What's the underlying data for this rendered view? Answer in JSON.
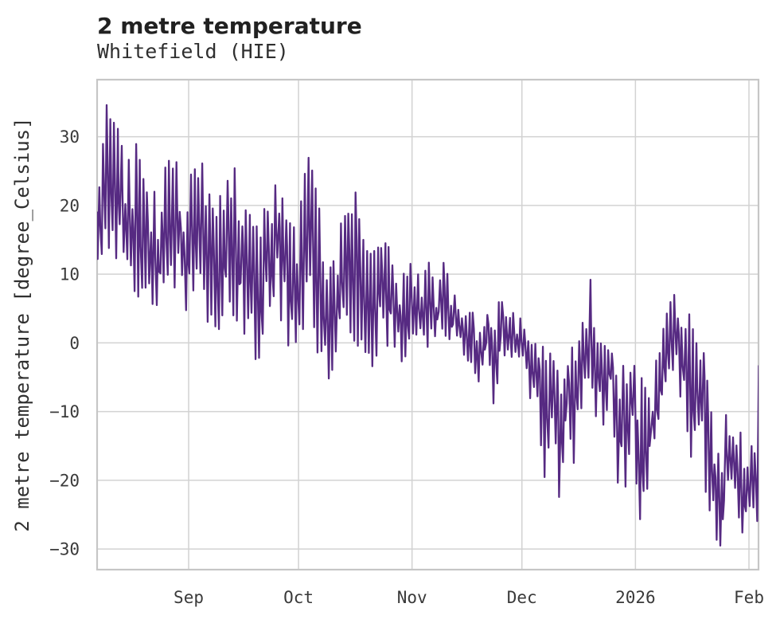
{
  "chart_data": {
    "type": "line",
    "title": "2 metre temperature",
    "subtitle": "Whitefield (HIE)",
    "ylabel": "2 metre temperature [degree_Celsius]",
    "xlabel": "",
    "legend": "none",
    "grid": true,
    "line_color": "#562a82",
    "background_color": "#ffffff",
    "grid_color": "#d2d2d2",
    "axis_border_color": "#c6c6c6",
    "tick_text_color": "#3a3a3a",
    "ylim": [
      -33,
      38.3
    ],
    "yticks": [
      30,
      20,
      10,
      0,
      -10,
      -20,
      -30
    ],
    "xticks": [
      {
        "label": "Sep",
        "day": 25
      },
      {
        "label": "Oct",
        "day": 55
      },
      {
        "label": "Nov",
        "day": 86
      },
      {
        "label": "Dec",
        "day": 116
      },
      {
        "label": "2026",
        "day": 147
      },
      {
        "label": "Feb",
        "day": 178
      }
    ],
    "x_unit": "days (day 0 = left edge of plot, month ticks at positions above)",
    "x_range": [
      0,
      180.6
    ],
    "series": {
      "name": "2 metre temperature",
      "unit": "degree_Celsius",
      "sampling": "daily min/max envelope sampled every 2 days, read from plot",
      "step_days": 2,
      "daily_min": [
        12,
        13,
        12,
        9,
        6.5,
        7,
        5,
        7,
        4,
        8,
        10,
        6,
        2,
        5,
        8,
        2,
        0,
        4,
        6,
        2,
        0,
        -2,
        -3.5,
        2,
        5,
        3,
        -1,
        -2.5,
        2,
        5,
        -2,
        -6.5,
        -4,
        1,
        3,
        0,
        -3,
        -5.5,
        -2,
        0,
        -1,
        -4,
        -2,
        0,
        2,
        -3.5,
        0,
        2,
        0,
        1,
        -2,
        -6,
        -9.3,
        0,
        -8.9,
        -3,
        -1,
        -4,
        -2,
        -12.5,
        -8,
        -23,
        -12,
        -25.7,
        -10,
        -18,
        -12,
        -6,
        -12.5,
        -12,
        -8,
        -23.6,
        -21,
        -16,
        -25.7,
        -22,
        -15,
        -8,
        -4,
        -6,
        -10,
        -16.6,
        -12,
        -21.8,
        -27.4,
        -30,
        -20,
        -22,
        -29,
        -29.7,
        -26
      ],
      "daily_max": [
        26,
        35,
        35,
        30,
        29,
        29,
        26,
        23,
        21,
        26,
        27,
        26,
        22,
        27,
        27,
        22,
        20,
        24,
        26,
        25,
        21,
        18,
        17,
        22,
        26,
        25,
        20,
        16,
        28.5,
        28.5,
        20,
        12,
        15,
        18,
        19,
        22,
        15,
        13,
        14,
        15,
        13,
        12,
        12.8,
        11,
        10,
        11.7,
        9,
        11.9,
        9,
        6,
        6,
        5,
        5,
        6.5,
        6,
        7,
        6,
        5,
        4,
        2,
        1,
        -2,
        -1,
        -4,
        0.7,
        -2,
        3,
        12.7,
        0,
        1,
        0,
        -1,
        -3,
        -2,
        -5,
        -8,
        -2,
        3,
        8.5,
        6,
        4,
        5,
        1.6,
        -4,
        -10,
        -12,
        -9,
        -10,
        -13,
        -15,
        -3
      ]
    }
  }
}
